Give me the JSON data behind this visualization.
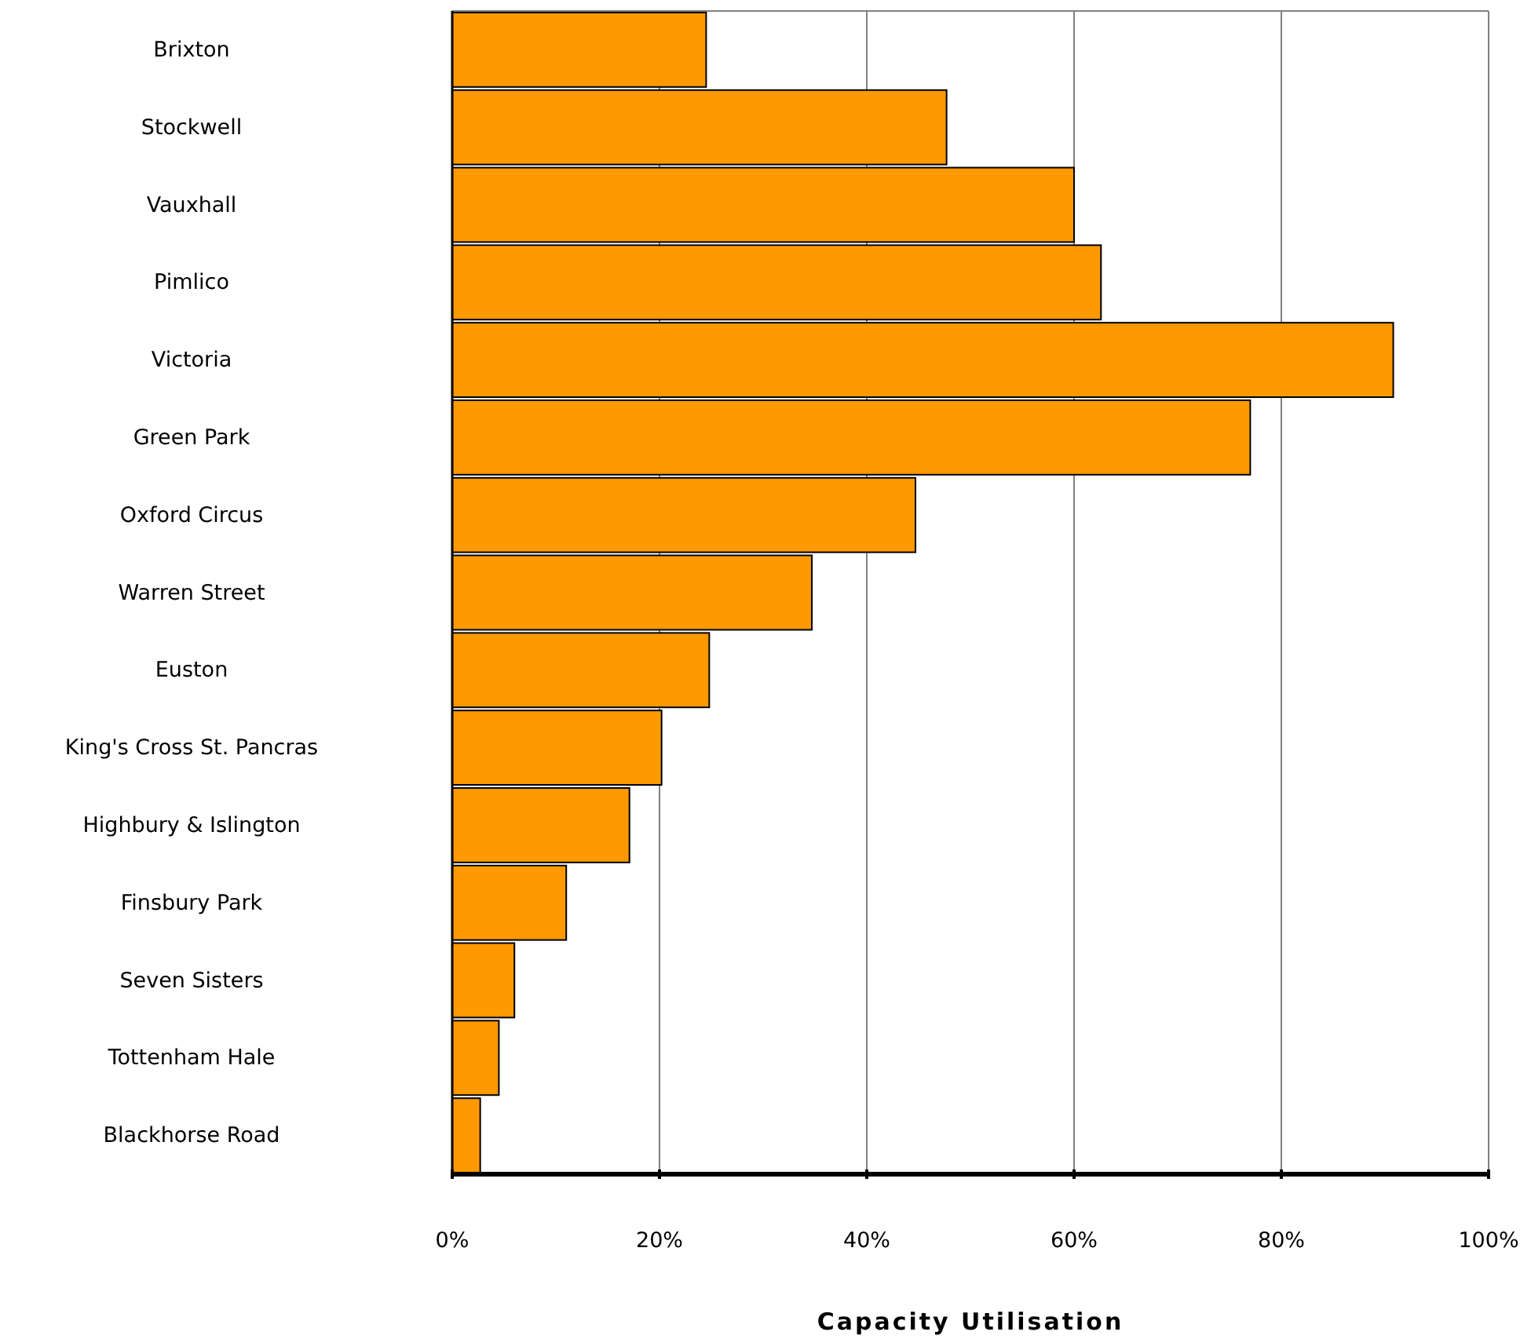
{
  "chart_data": {
    "type": "bar",
    "orientation": "horizontal",
    "xlabel": "Capacity Utilisation",
    "categories": [
      "Brixton",
      "Stockwell",
      "Vauxhall",
      "Pimlico",
      "Victoria",
      "Green Park",
      "Oxford Circus",
      "Warren Street",
      "Euston",
      "King's Cross St. Pancras",
      "Highbury & Islington",
      "Finsbury Park",
      "Seven Sisters",
      "Tottenham Hale",
      "Blackhorse Road"
    ],
    "values": [
      24.5,
      47.7,
      60,
      62.6,
      90.8,
      77,
      44.7,
      34.7,
      24.8,
      20.2,
      17.1,
      11,
      6,
      4.5,
      2.7
    ],
    "color": "#ff9900",
    "xlim": [
      0,
      100
    ],
    "xticks": [
      {
        "value": 0,
        "label": "0%"
      },
      {
        "value": 20,
        "label": "20%"
      },
      {
        "value": 40,
        "label": "40%"
      },
      {
        "value": 60,
        "label": "60%"
      },
      {
        "value": 80,
        "label": "80%"
      },
      {
        "value": 100,
        "label": "100%"
      }
    ],
    "grid": "x"
  }
}
